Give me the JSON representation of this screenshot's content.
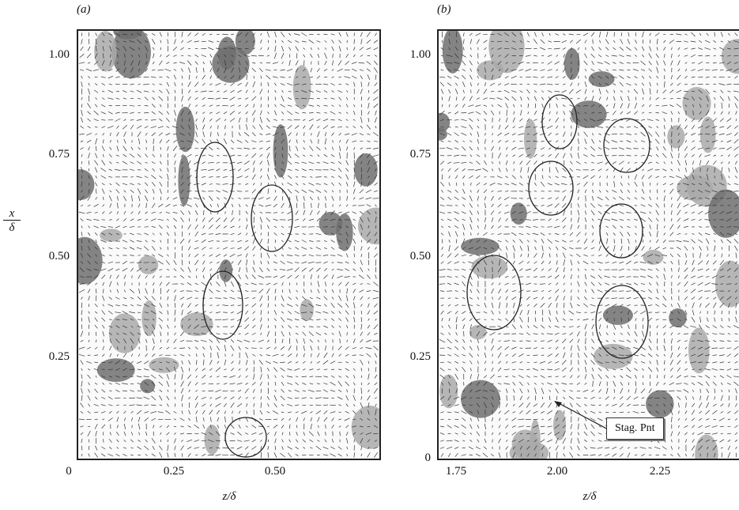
{
  "panels": [
    {
      "label": "(a)",
      "xticks": [
        "0",
        "0.25",
        "0.50"
      ],
      "yticks": [
        "0",
        "0.25",
        "0.50",
        "0.75",
        "1.00"
      ],
      "xlabel": "z/δ"
    },
    {
      "label": "(b)",
      "xticks": [
        "1.75",
        "2.00",
        "2.25"
      ],
      "yticks": [
        "0",
        "0.25",
        "0.50",
        "0.75",
        "1.00"
      ],
      "xlabel": "z/δ"
    }
  ],
  "ylabel": {
    "num": "x",
    "den": "δ"
  },
  "annotation": "Stag. Pnt"
}
